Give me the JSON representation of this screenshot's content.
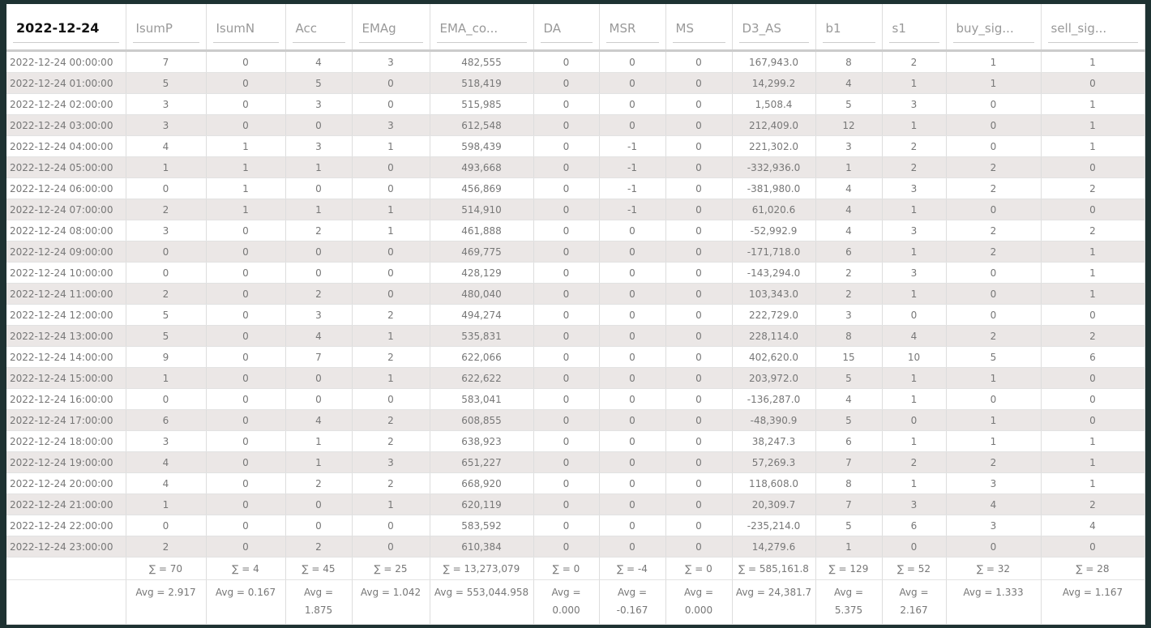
{
  "table": {
    "columns": [
      "2022-12-24",
      "IsumP",
      "IsumN",
      "Acc",
      "EMAg",
      "EMA_co...",
      "DA",
      "MSR",
      "MS",
      "D3_AS",
      "b1",
      "s1",
      "buy_sig...",
      "sell_sig..."
    ],
    "rows": [
      [
        "2022-12-24 00:00:00",
        "7",
        "0",
        "4",
        "3",
        "482,555",
        "0",
        "0",
        "0",
        "167,943.0",
        "8",
        "2",
        "1",
        "1"
      ],
      [
        "2022-12-24 01:00:00",
        "5",
        "0",
        "5",
        "0",
        "518,419",
        "0",
        "0",
        "0",
        "14,299.2",
        "4",
        "1",
        "1",
        "0"
      ],
      [
        "2022-12-24 02:00:00",
        "3",
        "0",
        "3",
        "0",
        "515,985",
        "0",
        "0",
        "0",
        "1,508.4",
        "5",
        "3",
        "0",
        "1"
      ],
      [
        "2022-12-24 03:00:00",
        "3",
        "0",
        "0",
        "3",
        "612,548",
        "0",
        "0",
        "0",
        "212,409.0",
        "12",
        "1",
        "0",
        "1"
      ],
      [
        "2022-12-24 04:00:00",
        "4",
        "1",
        "3",
        "1",
        "598,439",
        "0",
        "-1",
        "0",
        "221,302.0",
        "3",
        "2",
        "0",
        "1"
      ],
      [
        "2022-12-24 05:00:00",
        "1",
        "1",
        "1",
        "0",
        "493,668",
        "0",
        "-1",
        "0",
        "-332,936.0",
        "1",
        "2",
        "2",
        "0"
      ],
      [
        "2022-12-24 06:00:00",
        "0",
        "1",
        "0",
        "0",
        "456,869",
        "0",
        "-1",
        "0",
        "-381,980.0",
        "4",
        "3",
        "2",
        "2"
      ],
      [
        "2022-12-24 07:00:00",
        "2",
        "1",
        "1",
        "1",
        "514,910",
        "0",
        "-1",
        "0",
        "61,020.6",
        "4",
        "1",
        "0",
        "0"
      ],
      [
        "2022-12-24 08:00:00",
        "3",
        "0",
        "2",
        "1",
        "461,888",
        "0",
        "0",
        "0",
        "-52,992.9",
        "4",
        "3",
        "2",
        "2"
      ],
      [
        "2022-12-24 09:00:00",
        "0",
        "0",
        "0",
        "0",
        "469,775",
        "0",
        "0",
        "0",
        "-171,718.0",
        "6",
        "1",
        "2",
        "1"
      ],
      [
        "2022-12-24 10:00:00",
        "0",
        "0",
        "0",
        "0",
        "428,129",
        "0",
        "0",
        "0",
        "-143,294.0",
        "2",
        "3",
        "0",
        "1"
      ],
      [
        "2022-12-24 11:00:00",
        "2",
        "0",
        "2",
        "0",
        "480,040",
        "0",
        "0",
        "0",
        "103,343.0",
        "2",
        "1",
        "0",
        "1"
      ],
      [
        "2022-12-24 12:00:00",
        "5",
        "0",
        "3",
        "2",
        "494,274",
        "0",
        "0",
        "0",
        "222,729.0",
        "3",
        "0",
        "0",
        "0"
      ],
      [
        "2022-12-24 13:00:00",
        "5",
        "0",
        "4",
        "1",
        "535,831",
        "0",
        "0",
        "0",
        "228,114.0",
        "8",
        "4",
        "2",
        "2"
      ],
      [
        "2022-12-24 14:00:00",
        "9",
        "0",
        "7",
        "2",
        "622,066",
        "0",
        "0",
        "0",
        "402,620.0",
        "15",
        "10",
        "5",
        "6"
      ],
      [
        "2022-12-24 15:00:00",
        "1",
        "0",
        "0",
        "1",
        "622,622",
        "0",
        "0",
        "0",
        "203,972.0",
        "5",
        "1",
        "1",
        "0"
      ],
      [
        "2022-12-24 16:00:00",
        "0",
        "0",
        "0",
        "0",
        "583,041",
        "0",
        "0",
        "0",
        "-136,287.0",
        "4",
        "1",
        "0",
        "0"
      ],
      [
        "2022-12-24 17:00:00",
        "6",
        "0",
        "4",
        "2",
        "608,855",
        "0",
        "0",
        "0",
        "-48,390.9",
        "5",
        "0",
        "1",
        "0"
      ],
      [
        "2022-12-24 18:00:00",
        "3",
        "0",
        "1",
        "2",
        "638,923",
        "0",
        "0",
        "0",
        "38,247.3",
        "6",
        "1",
        "1",
        "1"
      ],
      [
        "2022-12-24 19:00:00",
        "4",
        "0",
        "1",
        "3",
        "651,227",
        "0",
        "0",
        "0",
        "57,269.3",
        "7",
        "2",
        "2",
        "1"
      ],
      [
        "2022-12-24 20:00:00",
        "4",
        "0",
        "2",
        "2",
        "668,920",
        "0",
        "0",
        "0",
        "118,608.0",
        "8",
        "1",
        "3",
        "1"
      ],
      [
        "2022-12-24 21:00:00",
        "1",
        "0",
        "0",
        "1",
        "620,119",
        "0",
        "0",
        "0",
        "20,309.7",
        "7",
        "3",
        "4",
        "2"
      ],
      [
        "2022-12-24 22:00:00",
        "0",
        "0",
        "0",
        "0",
        "583,592",
        "0",
        "0",
        "0",
        "-235,214.0",
        "5",
        "6",
        "3",
        "4"
      ],
      [
        "2022-12-24 23:00:00",
        "2",
        "0",
        "2",
        "0",
        "610,384",
        "0",
        "0",
        "0",
        "14,279.6",
        "1",
        "0",
        "0",
        "0"
      ]
    ],
    "sums": [
      "",
      "∑ = 70",
      "∑ = 4",
      "∑ = 45",
      "∑ = 25",
      "∑ = 13,273,079",
      "∑ = 0",
      "∑ = -4",
      "∑ = 0",
      "∑ = 585,161.8",
      "∑ = 129",
      "∑ = 52",
      "∑ = 32",
      "∑ = 28"
    ],
    "avgs": [
      "",
      "Avg = 2.917",
      "Avg = 0.167",
      "Avg = 1.875",
      "Avg = 1.042",
      "Avg = 553,044.958",
      "Avg = 0.000",
      "Avg = -0.167",
      "Avg = 0.000",
      "Avg = 24,381.7",
      "Avg = 5.375",
      "Avg = 2.167",
      "Avg = 1.333",
      "Avg = 1.167"
    ]
  }
}
